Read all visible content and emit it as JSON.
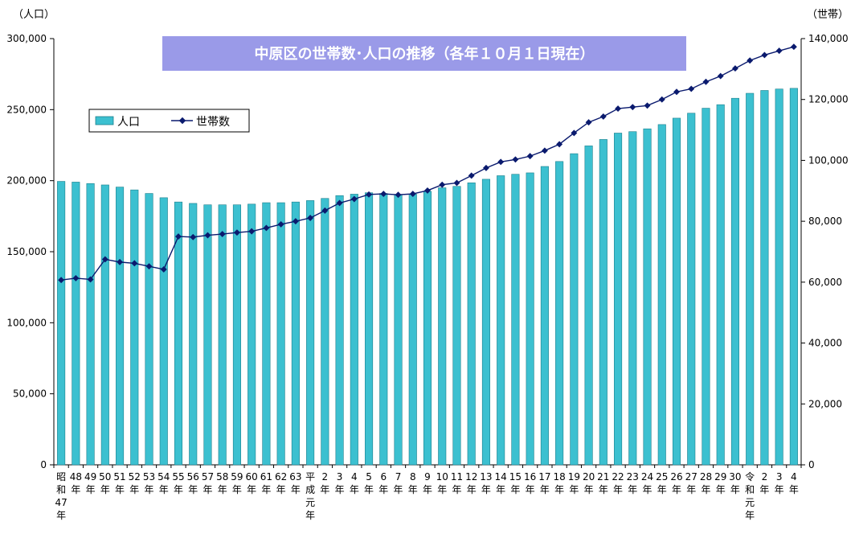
{
  "chart_data": {
    "type": "bar",
    "title": "中原区の世帯数･人口の推移（各年１０月１日現在）",
    "y_left_unit": "（人口）",
    "y_right_unit": "（世帯）",
    "ylim_left": [
      0,
      300000
    ],
    "ylim_right": [
      0,
      140000
    ],
    "yticks_left": [
      "0",
      "50,000",
      "100,000",
      "150,000",
      "200,000",
      "250,000",
      "300,000"
    ],
    "yticks_right": [
      "0",
      "20,000",
      "40,000",
      "60,000",
      "80,000",
      "100,000",
      "120,000",
      "140,000"
    ],
    "legend_position": "top-left",
    "colors": {
      "bar": "#3cc0d0",
      "bar_edge": "#1c7f8c",
      "line": "#0a1a6e",
      "title_bg": "#9a9ae8",
      "title_text": "#ffffff"
    },
    "categories": [
      [
        "昭",
        "和",
        "47",
        "年"
      ],
      [
        "48",
        "年"
      ],
      [
        "49",
        "年"
      ],
      [
        "50",
        "年"
      ],
      [
        "51",
        "年"
      ],
      [
        "52",
        "年"
      ],
      [
        "53",
        "年"
      ],
      [
        "54",
        "年"
      ],
      [
        "55",
        "年"
      ],
      [
        "56",
        "年"
      ],
      [
        "57",
        "年"
      ],
      [
        "58",
        "年"
      ],
      [
        "59",
        "年"
      ],
      [
        "60",
        "年"
      ],
      [
        "61",
        "年"
      ],
      [
        "62",
        "年"
      ],
      [
        "63",
        "年"
      ],
      [
        "平",
        "成",
        "元",
        "年"
      ],
      [
        "2",
        "年"
      ],
      [
        "3",
        "年"
      ],
      [
        "4",
        "年"
      ],
      [
        "5",
        "年"
      ],
      [
        "6",
        "年"
      ],
      [
        "7",
        "年"
      ],
      [
        "8",
        "年"
      ],
      [
        "9",
        "年"
      ],
      [
        "10",
        "年"
      ],
      [
        "11",
        "年"
      ],
      [
        "12",
        "年"
      ],
      [
        "13",
        "年"
      ],
      [
        "14",
        "年"
      ],
      [
        "15",
        "年"
      ],
      [
        "16",
        "年"
      ],
      [
        "17",
        "年"
      ],
      [
        "18",
        "年"
      ],
      [
        "19",
        "年"
      ],
      [
        "20",
        "年"
      ],
      [
        "21",
        "年"
      ],
      [
        "22",
        "年"
      ],
      [
        "23",
        "年"
      ],
      [
        "24",
        "年"
      ],
      [
        "25",
        "年"
      ],
      [
        "26",
        "年"
      ],
      [
        "27",
        "年"
      ],
      [
        "28",
        "年"
      ],
      [
        "29",
        "年"
      ],
      [
        "30",
        "年"
      ],
      [
        "令",
        "和",
        "元",
        "年"
      ],
      [
        "2",
        "年"
      ],
      [
        "3",
        "年"
      ],
      [
        "4",
        "年"
      ]
    ],
    "series": [
      {
        "name": "人口",
        "axis": "left",
        "values": [
          199500,
          199000,
          198000,
          197000,
          195500,
          193500,
          191000,
          188000,
          185000,
          184000,
          183000,
          183000,
          183000,
          183500,
          184500,
          184500,
          185000,
          186000,
          187500,
          189500,
          190500,
          191500,
          191000,
          190000,
          190500,
          192500,
          195000,
          196000,
          198500,
          201000,
          203500,
          204500,
          205500,
          210000,
          213500,
          219000,
          224500,
          229000,
          233500,
          234500,
          236500,
          239500,
          244000,
          247500,
          251000,
          253500,
          258000,
          261500,
          263500,
          264500,
          265000
        ]
      },
      {
        "name": "世帯数",
        "axis": "right",
        "values": [
          60700,
          61300,
          60900,
          67500,
          66600,
          66200,
          65200,
          64200,
          75000,
          74800,
          75400,
          75800,
          76300,
          76700,
          77800,
          79000,
          80000,
          81100,
          83500,
          86000,
          87300,
          88800,
          89000,
          88700,
          89000,
          90100,
          92000,
          92600,
          95000,
          97500,
          99500,
          100300,
          101400,
          103200,
          105300,
          109000,
          112500,
          114400,
          117000,
          117500,
          118000,
          120000,
          122500,
          123500,
          125800,
          127700,
          130200,
          132800,
          134600,
          136000,
          137300
        ]
      }
    ]
  }
}
